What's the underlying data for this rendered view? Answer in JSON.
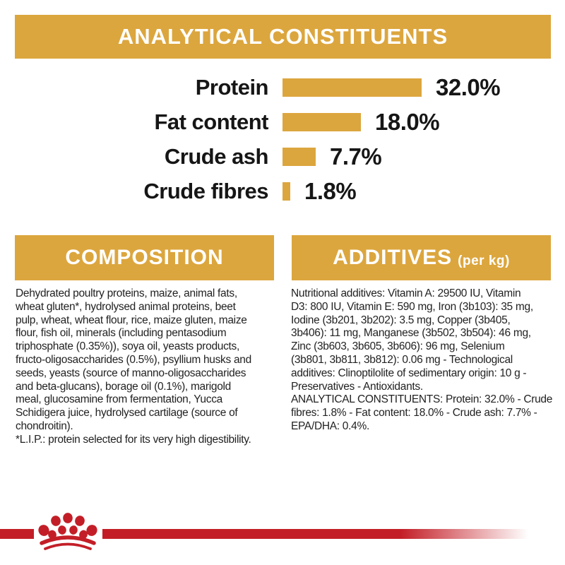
{
  "colors": {
    "gold": "#dca63e",
    "red": "#c31e27",
    "text_dark": "#161616",
    "banner_text": "#ffffff",
    "background": "#ffffff"
  },
  "header": {
    "title": "ANALYTICAL CONSTITUENTS"
  },
  "chart_data": {
    "type": "bar",
    "orientation": "horizontal",
    "title": "ANALYTICAL CONSTITUENTS",
    "categories": [
      "Protein",
      "Fat content",
      "Crude ash",
      "Crude fibres"
    ],
    "values": [
      32.0,
      18.0,
      7.7,
      1.8
    ],
    "value_labels": [
      "32.0%",
      "18.0%",
      "7.7%",
      "1.8%"
    ],
    "unit": "%",
    "xlim": [
      0,
      32
    ],
    "bar_color": "#dca63e",
    "grid": false,
    "legend": false
  },
  "composition": {
    "title": "COMPOSITION",
    "lines": [
      "Dehydrated poultry proteins, maize, animal fats,",
      "wheat gluten*, hydrolysed animal proteins, beet",
      "pulp, wheat, wheat flour, rice, maize gluten, maize",
      "flour, fish oil, minerals (including pentasodium",
      "triphosphate (0.35%)), soya oil, yeasts products,",
      "fructo-oligosaccharides (0.5%), psyllium husks and",
      "seeds, yeasts (source of manno-oligosaccharides",
      "and beta-glucans), borage oil (0.1%), marigold",
      "meal, glucosamine from fermentation, Yucca",
      "Schidigera juice, hydrolysed cartilage (source of",
      "chondroitin).",
      "*L.I.P.: protein selected for its very high digestibility."
    ]
  },
  "additives": {
    "title": "ADDITIVES",
    "title_suffix": "(per kg)",
    "lines": [
      "Nutritional additives: Vitamin A: 29500 IU, Vitamin",
      "D3: 800 IU, Vitamin E: 590 mg, Iron (3b103): 35 mg,",
      "Iodine (3b201, 3b202): 3.5 mg, Copper (3b405,",
      "3b406): 11 mg, Manganese (3b502, 3b504): 46 mg,",
      "Zinc (3b603, 3b605, 3b606): 96 mg, Selenium",
      "(3b801, 3b811, 3b812): 0.06 mg - Technological",
      "additives: Clinoptilolite of sedimentary origin: 10 g -",
      "Preservatives - Antioxidants.",
      "ANALYTICAL CONSTITUENTS: Protein: 32.0% - Crude",
      "fibres: 1.8% - Fat content: 18.0% - Crude ash: 7.7% -",
      "EPA/DHA: 0.4%."
    ]
  },
  "footer": {
    "logo": "royal-canin-crown"
  }
}
